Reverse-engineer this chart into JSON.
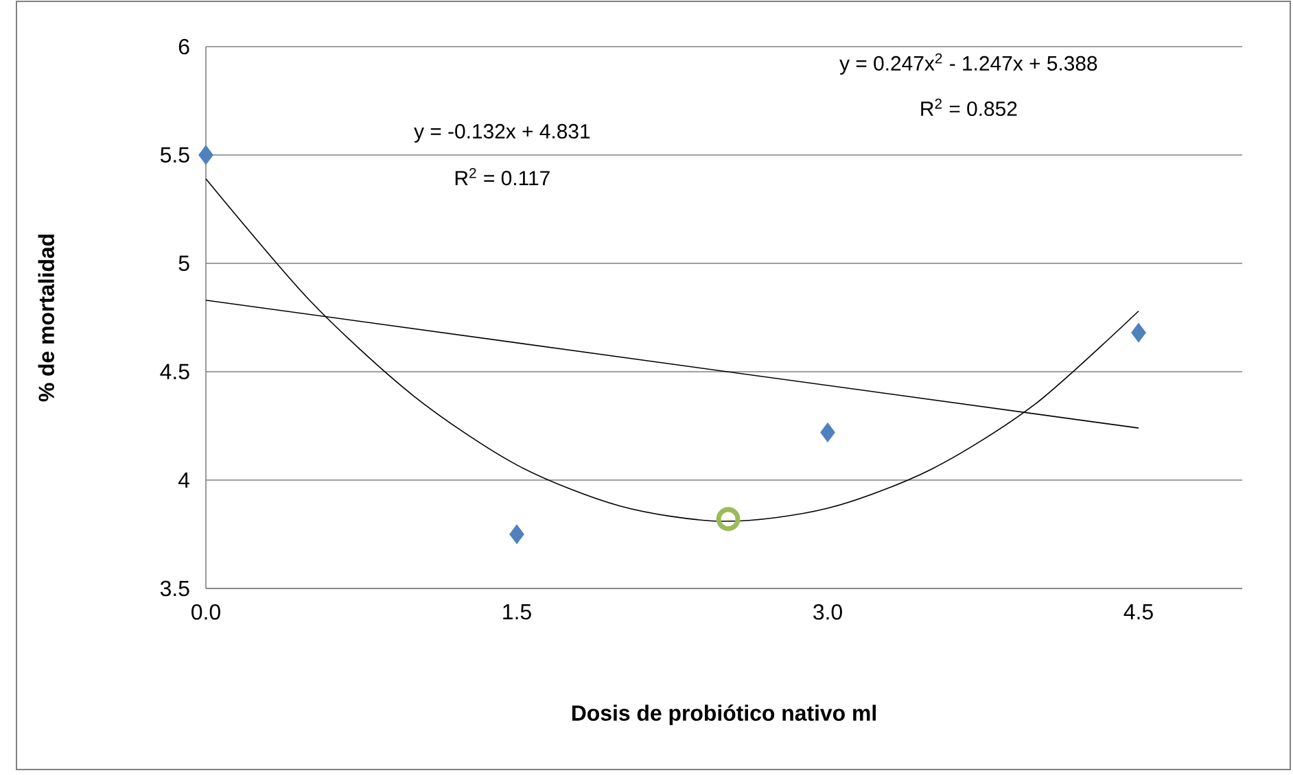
{
  "chart_data": {
    "type": "scatter",
    "xlabel": "Dosis de probiótico nativo ml",
    "ylabel": "% de mortalidad",
    "xlim": [
      0,
      5
    ],
    "ylim": [
      3.5,
      6
    ],
    "xticks": [
      {
        "value": 0,
        "label": "0.0"
      },
      1.5,
      {
        "value": 3,
        "label": "3.0"
      },
      4.5
    ],
    "yticks": [
      3.5,
      4,
      4.5,
      5,
      5.5,
      6
    ],
    "grid": "y",
    "series": [
      {
        "color": "#4f81bd",
        "marker": "diamond",
        "x": [
          0,
          1.5,
          3,
          4.5
        ],
        "values": [
          5.5,
          3.75,
          4.22,
          4.68
        ]
      },
      {
        "type": "scatter",
        "color": "#9bbb59",
        "marker": "circle",
        "x": [
          2.52
        ],
        "values": [
          3.82
        ]
      },
      {
        "type": "line",
        "color": "#000000",
        "marker": "none",
        "x": [
          0,
          4.5
        ],
        "values": [
          4.83,
          4.24
        ]
      },
      {
        "type": "line",
        "color": "#000000",
        "marker": "none",
        "x": [
          0,
          0.5,
          1,
          1.5,
          2,
          2.5,
          3,
          3.5,
          4,
          4.5
        ],
        "values": [
          5.39,
          4.83,
          4.39,
          4.07,
          3.88,
          3.81,
          3.87,
          4.05,
          4.35,
          4.78
        ]
      }
    ],
    "annotations": [
      "y = -0.132x + 4.831",
      "R$^{2}$ = 0.117",
      "y = 0.247x$^{2}$ - 1.247x + 5.388",
      "R$^{2}$ = 0.852"
    ]
  }
}
